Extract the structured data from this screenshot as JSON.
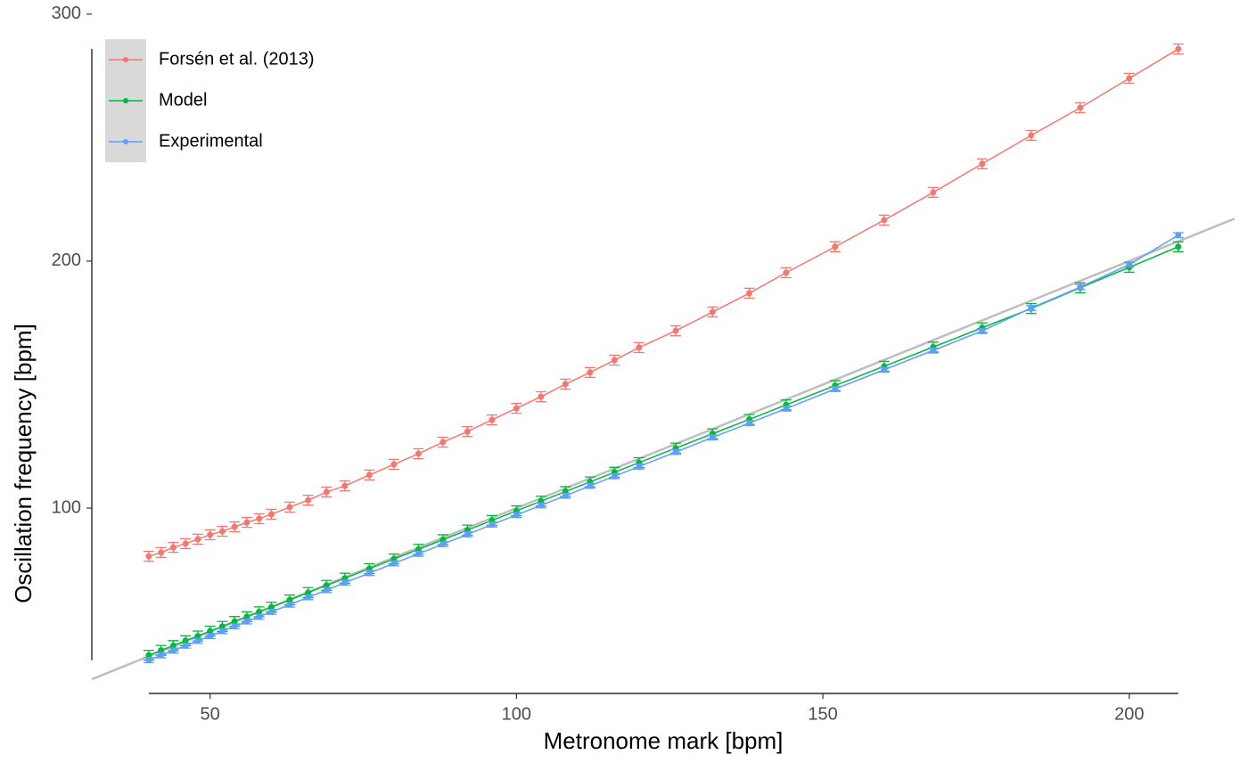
{
  "chart_data": {
    "type": "line",
    "x_label": "Metronome mark [bpm]",
    "y_label": "Oscillation frequency [bpm]",
    "x": [
      40,
      42,
      44,
      46,
      48,
      50,
      52,
      54,
      56,
      58,
      60,
      63,
      66,
      69,
      72,
      76,
      80,
      84,
      88,
      92,
      96,
      100,
      104,
      108,
      112,
      116,
      120,
      126,
      132,
      138,
      144,
      152,
      160,
      168,
      176,
      184,
      192,
      200,
      208
    ],
    "series": [
      {
        "name": "Forsén et al. (2013)",
        "color": "#f8766d",
        "error": 2,
        "values": [
          80.5,
          82,
          84.1,
          85.6,
          87.4,
          89.2,
          90.6,
          92.4,
          94.2,
          95.7,
          97.5,
          100.4,
          103.2,
          106.5,
          109,
          113.4,
          117.7,
          122,
          126.7,
          131,
          135.7,
          140.4,
          145.1,
          150.2,
          154.9,
          159.9,
          165,
          171.8,
          179.4,
          187,
          195.3,
          205.8,
          216.6,
          227.8,
          239.4,
          250.9,
          262.1,
          274,
          285.9
        ]
      },
      {
        "name": "Model",
        "color": "#00ba38",
        "error": 2,
        "values": [
          40.4,
          42.4,
          44.3,
          46.3,
          48.2,
          50.2,
          52.1,
          54.1,
          56,
          58,
          59.9,
          62.8,
          65.8,
          68.7,
          71.6,
          75.5,
          79.4,
          83.3,
          87.2,
          91.1,
          95,
          98.9,
          102.8,
          106.7,
          110.6,
          114.5,
          118.4,
          124.3,
          130.1,
          135.9,
          141.8,
          149.6,
          157.4,
          165.2,
          173,
          180.8,
          189.2,
          197.5,
          205.8
        ]
      },
      {
        "name": "Experimental",
        "color": "#619cff",
        "error": 1,
        "values": [
          38.4,
          40.4,
          42.3,
          44.3,
          46.2,
          48.2,
          50.2,
          52.1,
          54.1,
          56,
          58,
          60.9,
          63.9,
          66.8,
          69.8,
          73.7,
          77.6,
          81.5,
          85.4,
          89.4,
          93.3,
          97.2,
          101.1,
          105,
          109,
          112.9,
          116.8,
          122.7,
          128.6,
          134.4,
          140.3,
          148.2,
          156,
          163.8,
          171.7,
          181,
          189.5,
          198.6,
          210.5
        ]
      }
    ],
    "reference_line": {
      "slope": 1,
      "intercept": 0,
      "color": "#bebebe"
    },
    "xlim": [
      30.7,
      217.2
    ],
    "xticks": [
      50,
      100,
      150,
      200
    ],
    "ylim": [
      30,
      305
    ],
    "yticks": [
      100,
      200,
      300
    ],
    "grid": false,
    "legend_position": "top-left"
  }
}
